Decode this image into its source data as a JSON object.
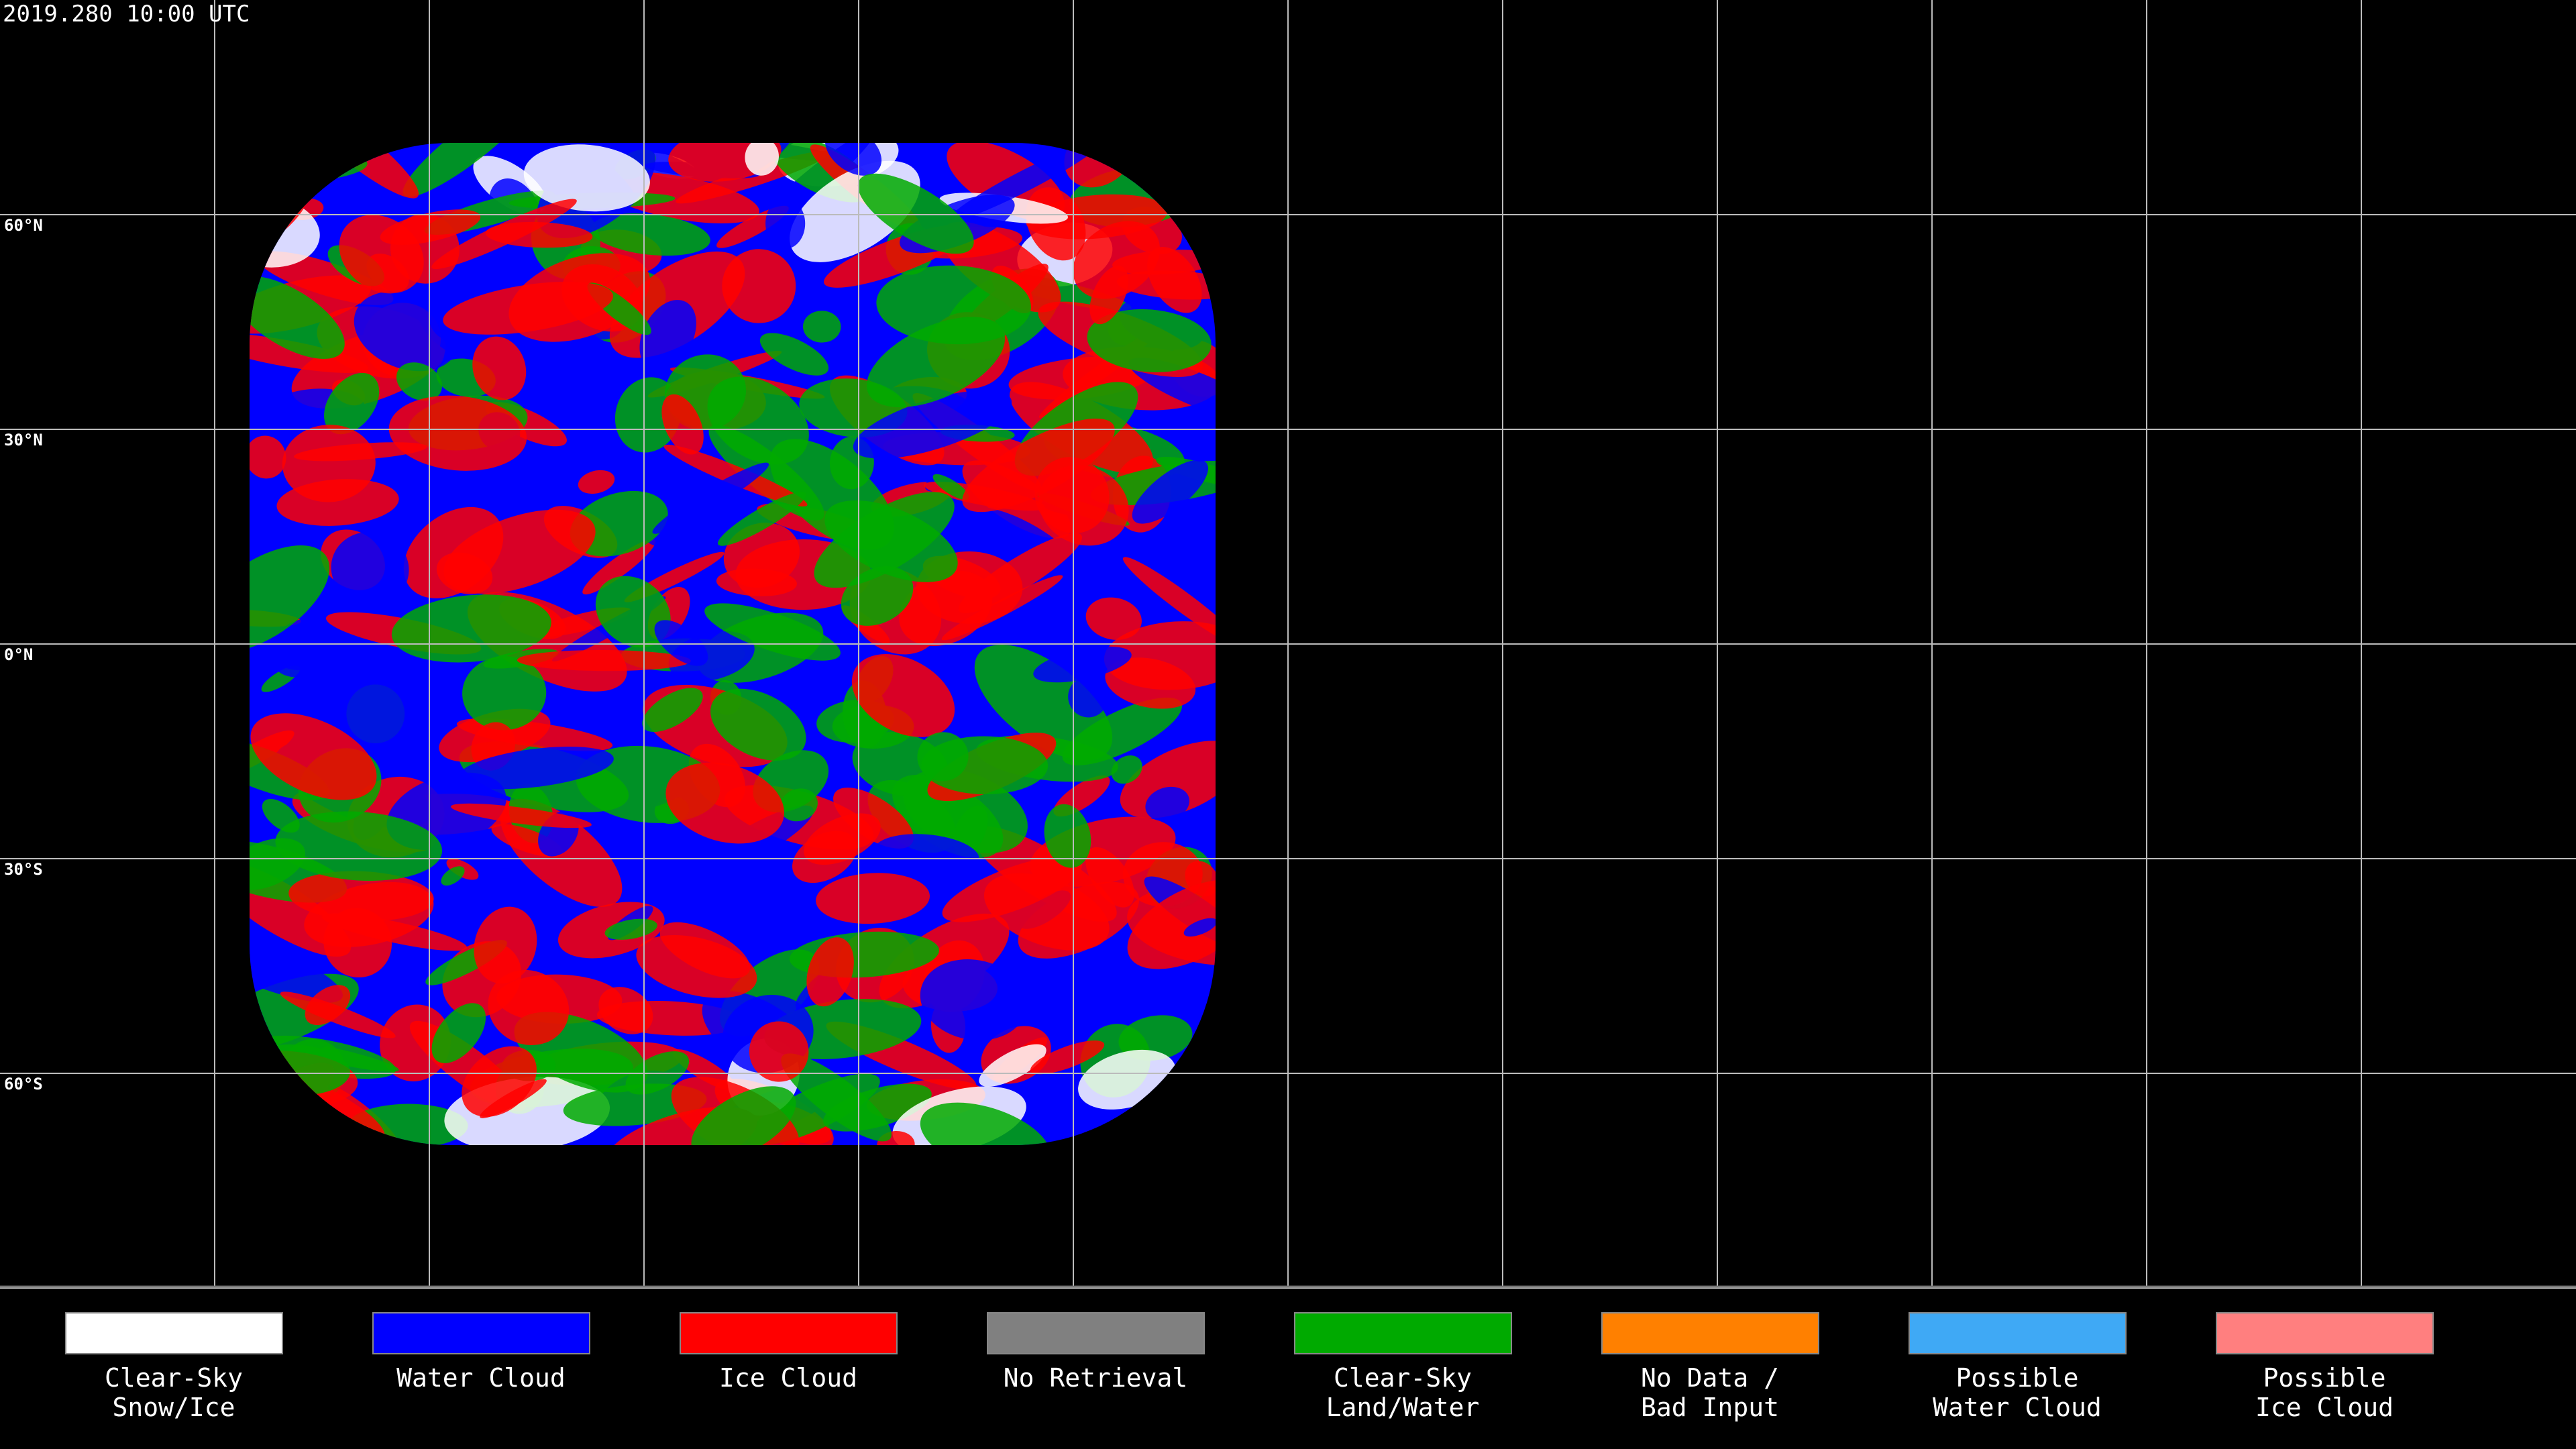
{
  "header": {
    "timestamp": "2019.280 10:00 UTC"
  },
  "map": {
    "lat_labels": [
      "60°N",
      "30°N",
      "0°N",
      "30°S",
      "60°S"
    ]
  },
  "legend": [
    {
      "label_lines": [
        "Clear-Sky",
        "Snow/Ice"
      ],
      "color": "#ffffff"
    },
    {
      "label_lines": [
        "Water Cloud"
      ],
      "color": "#0000ff"
    },
    {
      "label_lines": [
        "Ice Cloud"
      ],
      "color": "#ff0000"
    },
    {
      "label_lines": [
        "No Retrieval"
      ],
      "color": "#808080"
    },
    {
      "label_lines": [
        "Clear-Sky",
        "Land/Water"
      ],
      "color": "#00aa00"
    },
    {
      "label_lines": [
        "No Data /",
        "Bad Input"
      ],
      "color": "#ff8000"
    },
    {
      "label_lines": [
        "Possible",
        "Water Cloud"
      ],
      "color": "#3fa9f5"
    },
    {
      "label_lines": [
        "Possible",
        "Ice Cloud"
      ],
      "color": "#ff7f7f"
    }
  ]
}
